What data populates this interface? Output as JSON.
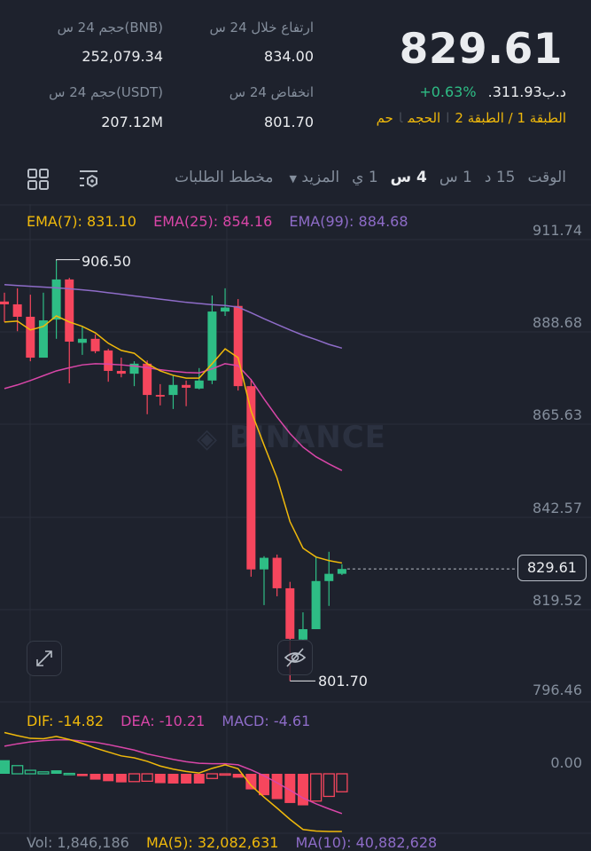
{
  "header": {
    "last_price": "829.61",
    "fiat_price": ".د.ب311.93",
    "change_percent": "+0.63%",
    "tags": [
      "الطبقة 1 / الطبقة 2",
      "الحجم",
      "حم"
    ],
    "stats": {
      "high_label": "ارتفاع خلال 24 س",
      "high_value": "834.00",
      "low_label": "انخفاض 24 س",
      "low_value": "801.70",
      "vol_bnb_label": "حجم 24 س(BNB)",
      "vol_bnb_value": "252,079.34",
      "vol_usdt_label": "حجم 24 س(USDT)",
      "vol_usdt_value": "207.12M"
    }
  },
  "toolbar": {
    "time_label": "الوقت",
    "intervals": [
      "15 د",
      "1 س",
      "4 س",
      "1 ي"
    ],
    "active_interval": "4 س",
    "more_label": "المزيد",
    "depth_label": "مخطط الطلبات",
    "icons": [
      "indicator-settings-icon",
      "grid-layout-icon"
    ]
  },
  "chart": {
    "watermark": "BINANCE",
    "ema_legend": {
      "ema7": "EMA(7): 831.10",
      "ema25": "EMA(25): 854.16",
      "ema99": "EMA(99): 884.68"
    },
    "macd_legend": {
      "dif": "DIF: -14.82",
      "dea": "DEA: -10.21",
      "macd": "MACD: -4.61"
    },
    "vol_legend": {
      "vol": "Vol: 1,846,186",
      "ma5": "MA(5): 32,082,631",
      "ma10": "MA(10): 40,882,628"
    },
    "price_axis": [
      "911.74",
      "888.68",
      "865.63",
      "842.57",
      "819.52",
      "796.46"
    ],
    "macd_axis": [
      "0.00"
    ],
    "current_price_tag": "829.61",
    "high_marker": "906.50",
    "low_marker": "801.70",
    "colors": {
      "up": "#2ebd85",
      "down": "#f6465d",
      "ema7": "#f0b90b",
      "ema25": "#d946a8",
      "ema99": "#8e6cc8",
      "bg": "#1e222d"
    }
  },
  "chart_data": {
    "type": "candlestick",
    "ylim": [
      796.46,
      911.74
    ],
    "candles": [
      [
        896.3,
        898.5,
        891.2,
        895.6
      ],
      [
        895.6,
        899.6,
        888.9,
        892.5
      ],
      [
        892.5,
        898.0,
        881.4,
        882.3
      ],
      [
        882.3,
        898.5,
        882.3,
        891.6
      ],
      [
        891.8,
        906.5,
        887.0,
        901.8
      ],
      [
        901.8,
        902.2,
        875.9,
        886.3
      ],
      [
        886.0,
        890.1,
        883.0,
        887.0
      ],
      [
        887.0,
        888.1,
        883.4,
        883.9
      ],
      [
        884.1,
        884.5,
        876.3,
        879.0
      ],
      [
        879.0,
        882.3,
        877.4,
        878.3
      ],
      [
        878.3,
        881.4,
        875.2,
        880.8
      ],
      [
        880.8,
        881.6,
        868.2,
        873.0
      ],
      [
        873.0,
        875.7,
        870.4,
        872.6
      ],
      [
        873.0,
        877.9,
        869.5,
        875.5
      ],
      [
        875.5,
        876.6,
        870.2,
        874.8
      ],
      [
        874.6,
        879.7,
        874.4,
        876.6
      ],
      [
        876.6,
        897.8,
        875.7,
        893.8
      ],
      [
        893.8,
        899.6,
        892.7,
        894.8
      ],
      [
        895.2,
        896.9,
        874.1,
        875.2
      ],
      [
        875.2,
        877.0,
        827.7,
        829.5
      ],
      [
        829.5,
        832.8,
        820.6,
        832.4
      ],
      [
        832.4,
        833.2,
        822.8,
        824.8
      ],
      [
        824.8,
        826.4,
        801.7,
        812.2
      ],
      [
        812.0,
        818.8,
        811.8,
        814.6
      ],
      [
        814.6,
        832.8,
        814.6,
        826.6
      ],
      [
        826.6,
        833.9,
        820.4,
        828.4
      ],
      [
        828.4,
        830.8,
        828.1,
        829.61
      ]
    ],
    "ema7": [
      891.2,
      891.4,
      889.2,
      890.1,
      892.7,
      891.2,
      890.1,
      888.5,
      885.9,
      884.1,
      883.4,
      880.8,
      879.0,
      877.9,
      877.2,
      877.2,
      880.8,
      884.5,
      882.3,
      869.0,
      860.5,
      852.3,
      841.4,
      834.8,
      832.6,
      831.7,
      831.1
    ],
    "ema25": [
      874.6,
      875.5,
      876.6,
      877.8,
      879.0,
      879.8,
      880.5,
      880.8,
      880.7,
      880.5,
      880.2,
      879.8,
      879.3,
      878.9,
      878.6,
      878.5,
      879.5,
      880.8,
      880.3,
      876.8,
      872.0,
      867.5,
      863.4,
      860.0,
      857.6,
      855.8,
      854.16
    ],
    "ema99": [
      900.5,
      900.3,
      900.1,
      899.9,
      899.7,
      899.5,
      899.2,
      898.9,
      898.5,
      898.1,
      897.7,
      897.3,
      896.9,
      896.5,
      896.1,
      895.8,
      895.5,
      895.3,
      894.9,
      893.5,
      892.0,
      890.6,
      889.2,
      887.9,
      886.8,
      885.6,
      884.68
    ],
    "macd": {
      "dif": [
        10.6,
        9.8,
        9.1,
        9.0,
        9.6,
        8.8,
        7.8,
        6.6,
        5.6,
        4.6,
        4.1,
        3.2,
        2.0,
        1.2,
        0.6,
        0.2,
        1.4,
        2.3,
        1.3,
        -3.0,
        -6.0,
        -8.8,
        -11.7,
        -14.3,
        -14.7,
        -14.8,
        -14.82
      ],
      "dea": [
        7.1,
        7.7,
        8.2,
        8.5,
        8.7,
        8.7,
        8.4,
        8.1,
        7.5,
        6.8,
        6.1,
        5.1,
        4.4,
        3.7,
        3.1,
        2.7,
        2.6,
        2.6,
        2.3,
        1.0,
        -0.5,
        -2.3,
        -4.2,
        -6.2,
        -7.7,
        -9.0,
        -10.21
      ]
    }
  }
}
